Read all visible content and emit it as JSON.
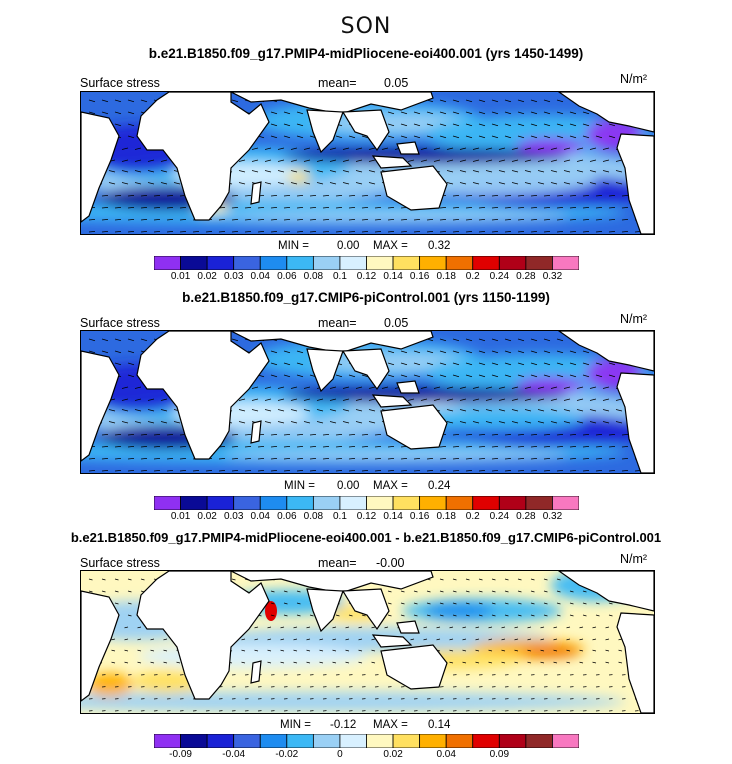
{
  "season": "SON",
  "panels": [
    {
      "title": "b.e21.B1850.f09_g17.PMIP4-midPliocene-eoi400.001 (yrs 1450-1499)",
      "field_label": "Surface stress",
      "mean_label": "mean=",
      "mean_value": "0.05",
      "units": "N/m²",
      "min_label": "MIN =",
      "min_value": "0.00",
      "max_label": "MAX =",
      "max_value": "0.32"
    },
    {
      "title": "b.e21.B1850.f09_g17.CMIP6-piControl.001 (yrs 1150-1199)",
      "field_label": "Surface stress",
      "mean_label": "mean=",
      "mean_value": "0.05",
      "units": "N/m²",
      "min_label": "MIN =",
      "min_value": "0.00",
      "max_label": "MAX =",
      "max_value": "0.24"
    },
    {
      "title": "b.e21.B1850.f09_g17.PMIP4-midPliocene-eoi400.001 - b.e21.B1850.f09_g17.CMIP6-piControl.001",
      "field_label": "Surface stress",
      "mean_label": "mean=",
      "mean_value": "-0.00",
      "units": "N/m²",
      "min_label": "MIN =",
      "min_value": "-0.12",
      "max_label": "MAX =",
      "max_value": "0.14"
    }
  ],
  "colorbars": {
    "abs_colors": [
      "#8f30f2",
      "#0a0a96",
      "#1a22d6",
      "#3a64e0",
      "#1e8cf0",
      "#3cb8f5",
      "#9ad0f5",
      "#d8f0ff",
      "#fff8c0",
      "#ffe060",
      "#ffb000",
      "#f07000",
      "#e00000",
      "#b00018",
      "#902828",
      "#f878c0"
    ],
    "abs_ticks": [
      "0.01",
      "0.02",
      "0.03",
      "0.04",
      "0.06",
      "0.08",
      "0.1",
      "0.12",
      "0.14",
      "0.16",
      "0.18",
      "0.2",
      "0.24",
      "0.28",
      "0.32"
    ],
    "diff_colors": [
      "#8f30f2",
      "#0a0a96",
      "#1a22d6",
      "#3a64e0",
      "#1e8cf0",
      "#3cb8f5",
      "#9ad0f5",
      "#d8f0ff",
      "#fff8c0",
      "#ffe060",
      "#ffb000",
      "#f07000",
      "#e00000",
      "#b00018",
      "#902828",
      "#f878c0"
    ],
    "diff_ticks": [
      "-0.09",
      "-0.04",
      "-0.02",
      "0",
      "0.02",
      "0.04",
      "0.09"
    ],
    "diff_tick_slots": [
      1,
      3,
      5,
      7,
      9,
      11,
      13
    ]
  },
  "chart_data": {
    "type": "heatmap",
    "variable": "Surface stress",
    "units": "N/m²",
    "season": "SON",
    "maps": [
      {
        "name": "midPliocene",
        "mean": 0.05,
        "min": 0.0,
        "max": 0.32
      },
      {
        "name": "piControl",
        "mean": 0.05,
        "min": 0.0,
        "max": 0.24
      },
      {
        "name": "difference",
        "mean": -0.0,
        "min": -0.12,
        "max": 0.14
      }
    ],
    "abs_levels": [
      0.01,
      0.02,
      0.03,
      0.04,
      0.06,
      0.08,
      0.1,
      0.12,
      0.14,
      0.16,
      0.18,
      0.2,
      0.24,
      0.28,
      0.32
    ],
    "diff_levels": [
      -0.09,
      -0.04,
      -0.02,
      0,
      0.02,
      0.04,
      0.09
    ]
  }
}
